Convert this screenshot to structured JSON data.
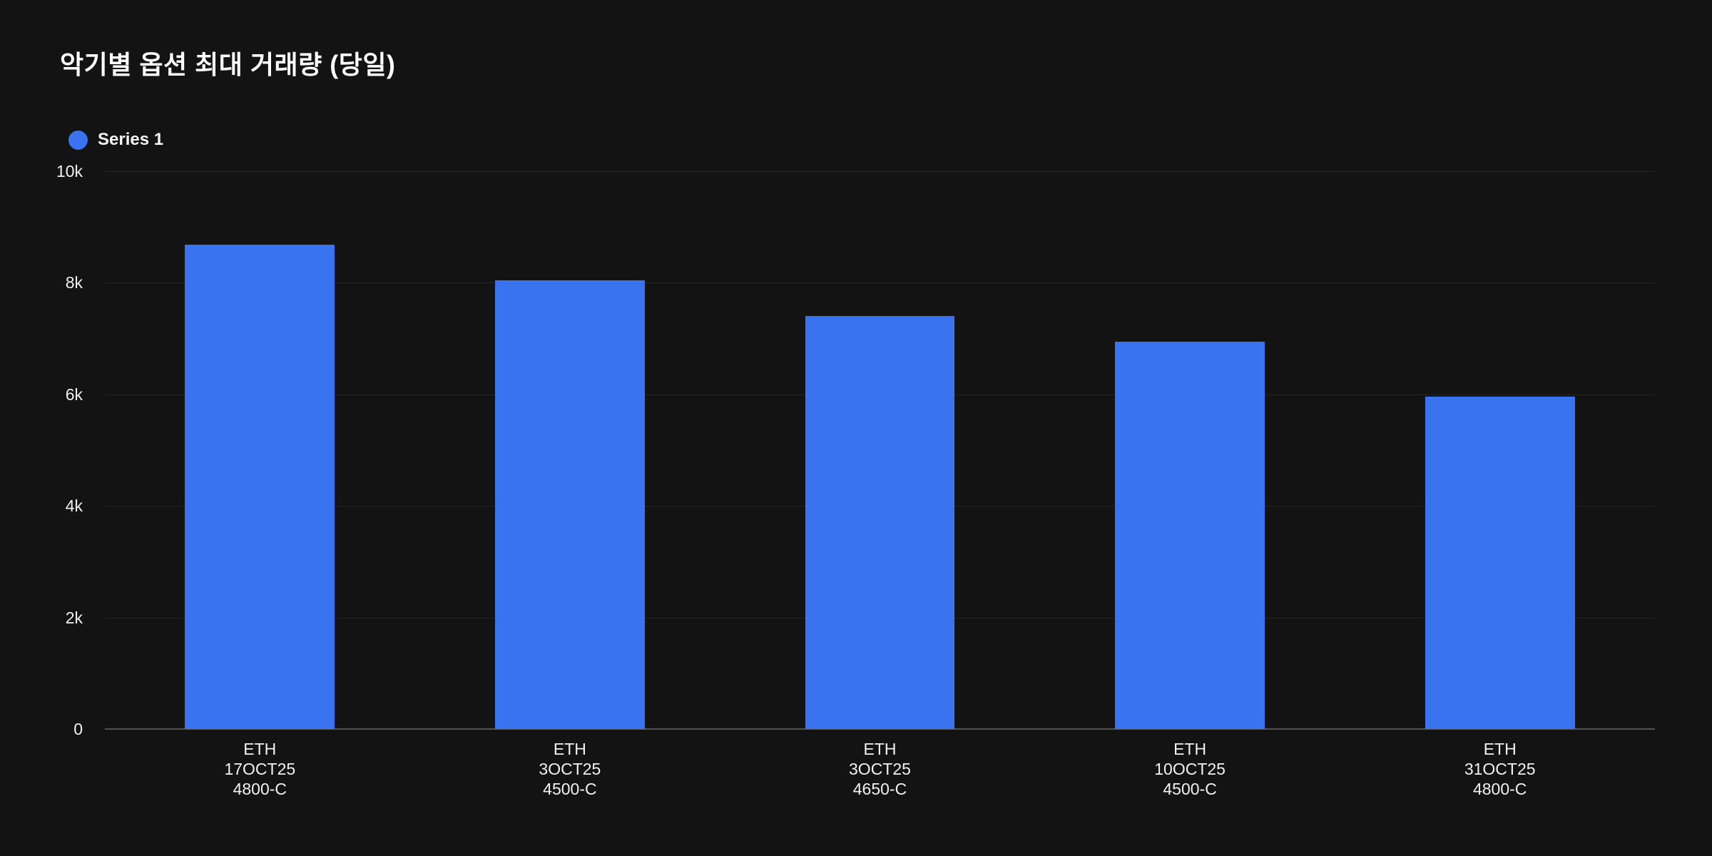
{
  "title": "악기별 옵션 최대 거래량 (당일)",
  "legend": {
    "items": [
      {
        "label": "Series 1",
        "color": "#3a73f0"
      }
    ]
  },
  "colors": {
    "background": "#131313",
    "bar": "#3a73f0",
    "gridline": "#282828",
    "axis_line": "#535353",
    "title_text": "#ffffff",
    "axis_text": "#f1f1f1"
  },
  "chart_data": {
    "type": "bar",
    "title": "악기별 옵션 최대 거래량 (당일)",
    "series_name": "Series 1",
    "categories": [
      [
        "ETH",
        "17OCT25",
        "4800-C"
      ],
      [
        "ETH",
        "3OCT25",
        "4500-C"
      ],
      [
        "ETH",
        "3OCT25",
        "4650-C"
      ],
      [
        "ETH",
        "10OCT25",
        "4500-C"
      ],
      [
        "ETH",
        "31OCT25",
        "4800-C"
      ]
    ],
    "values": [
      8680,
      8050,
      7400,
      6950,
      5960
    ],
    "xlabel": "",
    "ylabel": "",
    "ylim": [
      0,
      10000
    ],
    "yticks": [
      0,
      2000,
      4000,
      6000,
      8000,
      10000
    ],
    "ytick_labels": [
      "0",
      "2k",
      "4k",
      "6k",
      "8k",
      "10k"
    ],
    "grid": true,
    "legend_position": "top-left"
  }
}
